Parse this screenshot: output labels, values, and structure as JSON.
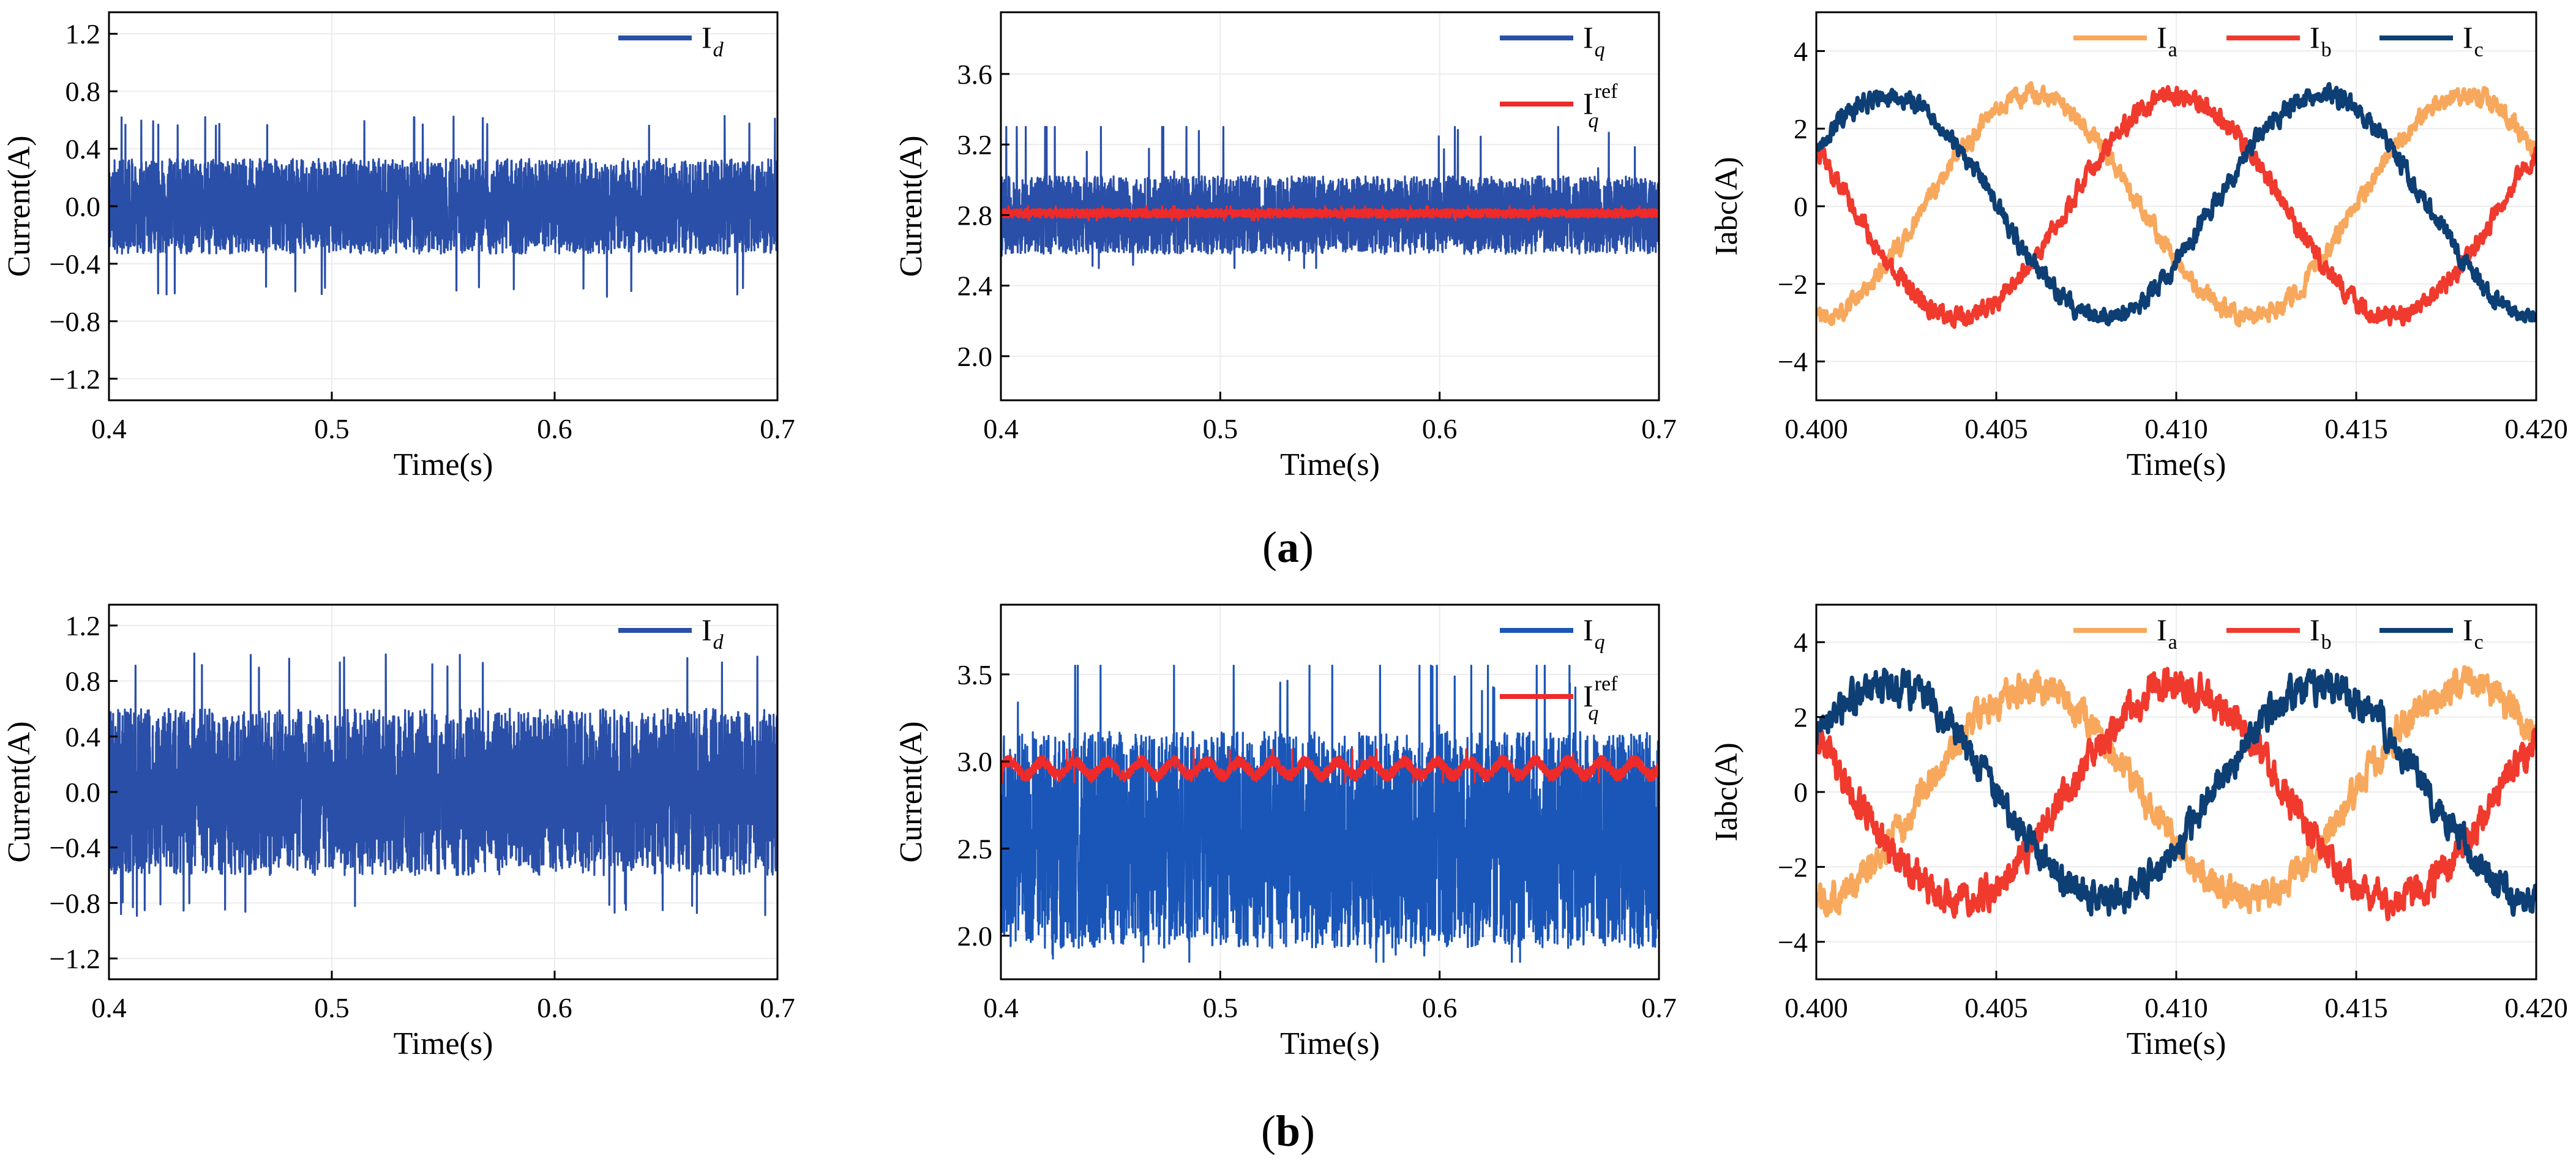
{
  "figure": {
    "captions": [
      {
        "open": "(",
        "letter": "a",
        "close": ")"
      },
      {
        "open": "(",
        "letter": "b",
        "close": ")"
      }
    ]
  },
  "chart_data": [
    {
      "id": "a1",
      "type": "line",
      "row": "a",
      "position": "left",
      "xlabel": "Time(s)",
      "ylabel": "Current(A)",
      "xlim": [
        0.4,
        0.7
      ],
      "ylim": [
        -1.35,
        1.35
      ],
      "xticks": [
        0.4,
        0.5,
        0.6,
        0.7
      ],
      "xtick_labels": [
        "0.4",
        "0.5",
        "0.6",
        "0.7"
      ],
      "yticks": [
        -1.2,
        -0.8,
        -0.4,
        0.0,
        0.4,
        0.8,
        1.2
      ],
      "ytick_labels": [
        "−1.2",
        "−0.8",
        "−0.4",
        "0.0",
        "0.4",
        "0.8",
        "1.2"
      ],
      "legend_position": "top-right",
      "grid": true,
      "series": [
        {
          "name": "I",
          "subscript": "d",
          "superscript": "",
          "sub_italic": true,
          "color": "#2a4fa8",
          "kind": "noise",
          "mean": 0.0,
          "amplitude": 0.33,
          "peak_max": 0.63,
          "peak_min": -0.63,
          "ripple": 0.0,
          "seed": 11
        }
      ]
    },
    {
      "id": "a2",
      "type": "line",
      "row": "a",
      "position": "middle",
      "xlabel": "Time(s)",
      "ylabel": "Current(A)",
      "xlim": [
        0.4,
        0.7
      ],
      "ylim": [
        1.75,
        3.95
      ],
      "xticks": [
        0.4,
        0.5,
        0.6,
        0.7
      ],
      "xtick_labels": [
        "0.4",
        "0.5",
        "0.6",
        "0.7"
      ],
      "yticks": [
        2.0,
        2.4,
        2.8,
        3.2,
        3.6
      ],
      "ytick_labels": [
        "2.0",
        "2.4",
        "2.8",
        "3.2",
        "3.6"
      ],
      "legend_position": "top-right",
      "grid": true,
      "series": [
        {
          "name": "I",
          "subscript": "q",
          "superscript": "",
          "sub_italic": true,
          "color": "#2a4fa8",
          "kind": "noise",
          "mean": 2.8,
          "amplitude": 0.22,
          "peak_max": 3.3,
          "peak_min": 2.5,
          "ripple": 0.0,
          "seed": 23
        },
        {
          "name": "I",
          "subscript": "q",
          "superscript": "ref",
          "sub_italic": true,
          "color": "#ee2a2a",
          "kind": "noise",
          "mean": 2.81,
          "amplitude": 0.025,
          "peak_max": 2.85,
          "peak_min": 2.77,
          "ripple": 0.0,
          "seed": 37
        }
      ]
    },
    {
      "id": "a3",
      "type": "line",
      "row": "a",
      "position": "right",
      "xlabel": "Time(s)",
      "ylabel": "Iabc(A)",
      "xlim": [
        0.4,
        0.42
      ],
      "ylim": [
        -5,
        5
      ],
      "xticks": [
        0.4,
        0.405,
        0.41,
        0.415,
        0.42
      ],
      "xtick_labels": [
        "0.400",
        "0.405",
        "0.410",
        "0.415",
        "0.420"
      ],
      "yticks": [
        -4,
        -2,
        0,
        2,
        4
      ],
      "ytick_labels": [
        "−4",
        "−2",
        "0",
        "2",
        "4"
      ],
      "legend_position": "top-right",
      "grid": true,
      "series": [
        {
          "name": "I",
          "subscript": "a",
          "superscript": "",
          "sub_italic": false,
          "color": "#f8a85c",
          "kind": "sine",
          "amplitude": 2.85,
          "frequency_hz": 83.3,
          "phase_deg": -90,
          "noise": 0.18,
          "seed": 41
        },
        {
          "name": "I",
          "subscript": "b",
          "superscript": "",
          "sub_italic": false,
          "color": "#f03a2e",
          "kind": "sine",
          "amplitude": 2.85,
          "frequency_hz": 83.3,
          "phase_deg": 150,
          "noise": 0.18,
          "seed": 53
        },
        {
          "name": "I",
          "subscript": "c",
          "superscript": "",
          "sub_italic": false,
          "color": "#0d3f75",
          "kind": "sine",
          "amplitude": 2.85,
          "frequency_hz": 83.3,
          "phase_deg": 30,
          "noise": 0.18,
          "seed": 67
        }
      ]
    },
    {
      "id": "b1",
      "type": "line",
      "row": "b",
      "position": "left",
      "xlabel": "Time(s)",
      "ylabel": "Current(A)",
      "xlim": [
        0.4,
        0.7
      ],
      "ylim": [
        -1.35,
        1.35
      ],
      "xticks": [
        0.4,
        0.5,
        0.6,
        0.7
      ],
      "xtick_labels": [
        "0.4",
        "0.5",
        "0.6",
        "0.7"
      ],
      "yticks": [
        -1.2,
        -0.8,
        -0.4,
        0.0,
        0.4,
        0.8,
        1.2
      ],
      "ytick_labels": [
        "−1.2",
        "−0.8",
        "−0.4",
        "0.0",
        "0.4",
        "0.8",
        "1.2"
      ],
      "legend_position": "top-right",
      "grid": true,
      "series": [
        {
          "name": "I",
          "subscript": "d",
          "superscript": "",
          "sub_italic": true,
          "color": "#2a4fa8",
          "kind": "noise",
          "mean": 0.0,
          "amplitude": 0.6,
          "peak_max": 1.0,
          "peak_min": -0.9,
          "ripple": 0.0,
          "seed": 79
        }
      ]
    },
    {
      "id": "b2",
      "type": "line",
      "row": "b",
      "position": "middle",
      "xlabel": "Time(s)",
      "ylabel": "Current(A)",
      "xlim": [
        0.4,
        0.7
      ],
      "ylim": [
        1.75,
        3.9
      ],
      "xticks": [
        0.4,
        0.5,
        0.6,
        0.7
      ],
      "xtick_labels": [
        "0.4",
        "0.5",
        "0.6",
        "0.7"
      ],
      "yticks": [
        2.0,
        2.5,
        3.0,
        3.5
      ],
      "ytick_labels": [
        "2.0",
        "2.5",
        "3.0",
        "3.5"
      ],
      "legend_position": "top-right",
      "grid": true,
      "series": [
        {
          "name": "I",
          "subscript": "q",
          "superscript": "",
          "sub_italic": true,
          "color": "#1a56b8",
          "kind": "noise",
          "mean": 2.55,
          "amplitude": 0.62,
          "peak_max": 3.55,
          "peak_min": 1.85,
          "ripple": 0.0,
          "seed": 83
        },
        {
          "name": "I",
          "subscript": "q",
          "superscript": "ref",
          "sub_italic": true,
          "color": "#ee2a2a",
          "kind": "noise",
          "mean": 2.96,
          "amplitude": 0.035,
          "peak_max": 3.07,
          "peak_min": 2.88,
          "ripple": 0.04,
          "seed": 97
        }
      ]
    },
    {
      "id": "b3",
      "type": "line",
      "row": "b",
      "position": "right",
      "xlabel": "Time(s)",
      "ylabel": "Iabc(A)",
      "xlim": [
        0.4,
        0.42
      ],
      "ylim": [
        -5,
        5
      ],
      "xticks": [
        0.4,
        0.405,
        0.41,
        0.415,
        0.42
      ],
      "xtick_labels": [
        "0.400",
        "0.405",
        "0.410",
        "0.415",
        "0.420"
      ],
      "yticks": [
        -4,
        -2,
        0,
        2,
        4
      ],
      "ytick_labels": [
        "−4",
        "−2",
        "0",
        "2",
        "4"
      ],
      "legend_position": "top-right",
      "grid": true,
      "series": [
        {
          "name": "I",
          "subscript": "a",
          "superscript": "",
          "sub_italic": false,
          "color": "#f8a85c",
          "kind": "sine",
          "amplitude": 2.85,
          "frequency_hz": 83.3,
          "phase_deg": -90,
          "noise": 0.32,
          "seed": 101
        },
        {
          "name": "I",
          "subscript": "b",
          "superscript": "",
          "sub_italic": false,
          "color": "#f03a2e",
          "kind": "sine",
          "amplitude": 2.85,
          "frequency_hz": 83.3,
          "phase_deg": 150,
          "noise": 0.32,
          "seed": 113
        },
        {
          "name": "I",
          "subscript": "c",
          "superscript": "",
          "sub_italic": false,
          "color": "#0d3f75",
          "kind": "sine",
          "amplitude": 2.85,
          "frequency_hz": 83.3,
          "phase_deg": 30,
          "noise": 0.32,
          "seed": 127
        }
      ]
    }
  ]
}
